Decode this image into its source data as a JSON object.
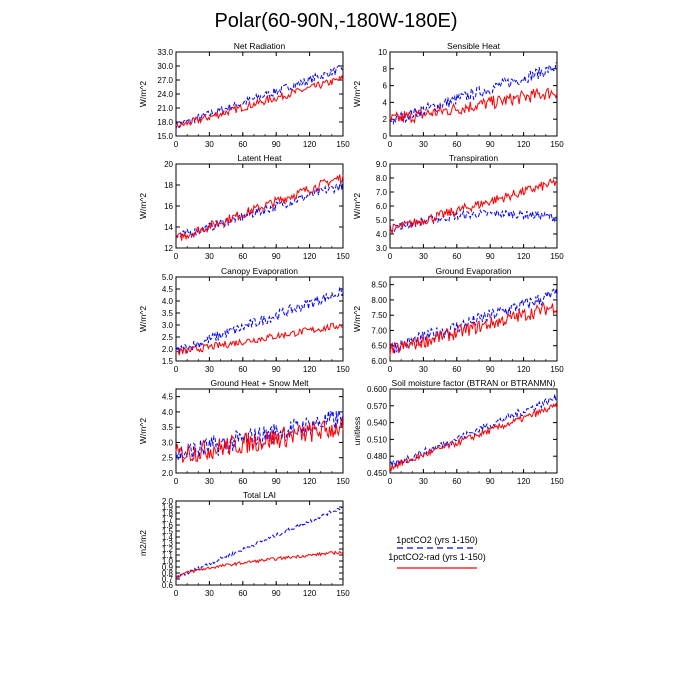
{
  "page_title": "Polar(60-90N,-180W-180E)",
  "legend": {
    "entries": [
      {
        "label": "1pctCO2 (yrs 1-150)",
        "color": "#0000ff",
        "dash": true
      },
      {
        "label": "1pctCO2-rad (yrs 1-150)",
        "color": "#ff0000",
        "dash": false
      }
    ]
  },
  "chart_data": [
    {
      "type": "line",
      "title": "Net Radiation",
      "ylabel": "W/m^2",
      "xlim": [
        0,
        150
      ],
      "xticks": [
        0,
        30,
        60,
        90,
        120,
        150
      ],
      "ylim": [
        15,
        33
      ],
      "yticks": [
        "15.0",
        "18.0",
        "21.0",
        "24.0",
        "27.0",
        "30.0",
        "33.0"
      ],
      "series": [
        {
          "color": "#0000ff",
          "dash": true,
          "start": 17.2,
          "end": 29.5,
          "noise": 0.9
        },
        {
          "color": "#ff0000",
          "dash": false,
          "start": 17.0,
          "end": 27.3,
          "noise": 0.8
        }
      ]
    },
    {
      "type": "line",
      "title": "Sensible Heat",
      "ylabel": "W/m^2",
      "xlim": [
        0,
        150
      ],
      "xticks": [
        0,
        30,
        60,
        90,
        120,
        150
      ],
      "ylim": [
        0,
        10
      ],
      "yticks": [
        "0",
        "2",
        "4",
        "6",
        "8",
        "10"
      ],
      "series": [
        {
          "color": "#0000ff",
          "dash": true,
          "start": 1.8,
          "end": 8.2,
          "noise": 0.7
        },
        {
          "color": "#ff0000",
          "dash": false,
          "start": 1.9,
          "end": 5.3,
          "noise": 0.8
        }
      ]
    },
    {
      "type": "line",
      "title": "Latent Heat",
      "ylabel": "W/m^2",
      "xlim": [
        0,
        150
      ],
      "xticks": [
        0,
        30,
        60,
        90,
        120,
        150
      ],
      "ylim": [
        12,
        20
      ],
      "yticks": [
        "12",
        "14",
        "16",
        "18",
        "20"
      ],
      "series": [
        {
          "color": "#0000ff",
          "dash": true,
          "start": 13.0,
          "end": 18.0,
          "noise": 0.45
        },
        {
          "color": "#ff0000",
          "dash": false,
          "start": 12.9,
          "end": 18.8,
          "noise": 0.45
        }
      ]
    },
    {
      "type": "line",
      "title": "Transpiration",
      "ylabel": "W/m^2",
      "xlim": [
        0,
        150
      ],
      "xticks": [
        0,
        30,
        60,
        90,
        120,
        150
      ],
      "ylim": [
        3,
        9
      ],
      "yticks": [
        "3.0",
        "4.0",
        "5.0",
        "6.0",
        "7.0",
        "8.0",
        "9.0"
      ],
      "series": [
        {
          "color": "#0000ff",
          "dash": true,
          "start": 4.4,
          "end": 5.2,
          "noise": 0.3,
          "peak": 0.6
        },
        {
          "color": "#ff0000",
          "dash": false,
          "start": 4.3,
          "end": 7.7,
          "noise": 0.35
        }
      ]
    },
    {
      "type": "line",
      "title": "Canopy Evaporation",
      "ylabel": "W/m^2",
      "xlim": [
        0,
        150
      ],
      "xticks": [
        0,
        30,
        60,
        90,
        120,
        150
      ],
      "ylim": [
        1.5,
        5.0
      ],
      "yticks": [
        "1.5",
        "2.0",
        "2.5",
        "3.0",
        "3.5",
        "4.0",
        "4.5",
        "5.0"
      ],
      "series": [
        {
          "color": "#0000ff",
          "dash": true,
          "start": 1.9,
          "end": 4.4,
          "noise": 0.22
        },
        {
          "color": "#ff0000",
          "dash": false,
          "start": 1.85,
          "end": 3.0,
          "noise": 0.15
        }
      ]
    },
    {
      "type": "line",
      "title": "Ground Evaporation",
      "ylabel": "W/m^2",
      "xlim": [
        0,
        150
      ],
      "xticks": [
        0,
        30,
        60,
        90,
        120,
        150
      ],
      "ylim": [
        6.0,
        8.75
      ],
      "yticks": [
        "6.00",
        "6.50",
        "7.00",
        "7.50",
        "8.00",
        "8.50"
      ],
      "series": [
        {
          "color": "#0000ff",
          "dash": true,
          "start": 6.4,
          "end": 8.2,
          "noise": 0.22
        },
        {
          "color": "#ff0000",
          "dash": false,
          "start": 6.35,
          "end": 7.8,
          "noise": 0.22
        }
      ]
    },
    {
      "type": "line",
      "title": "Ground Heat + Snow Melt",
      "ylabel": "W/m^2",
      "xlim": [
        0,
        150
      ],
      "xticks": [
        0,
        30,
        60,
        90,
        120,
        150
      ],
      "ylim": [
        2.0,
        4.75
      ],
      "yticks": [
        "2.0",
        "2.5",
        "3.0",
        "3.5",
        "4.0",
        "4.5"
      ],
      "series": [
        {
          "color": "#0000ff",
          "dash": true,
          "start": 2.6,
          "end": 3.8,
          "noise": 0.35
        },
        {
          "color": "#ff0000",
          "dash": false,
          "start": 2.6,
          "end": 3.5,
          "noise": 0.35
        }
      ]
    },
    {
      "type": "line",
      "title": "Soil moisture factor (BTRAN or BTRANMN)",
      "ylabel": "unitless",
      "xlim": [
        0,
        150
      ],
      "xticks": [
        0,
        30,
        60,
        90,
        120,
        150
      ],
      "ylim": [
        0.45,
        0.6
      ],
      "yticks": [
        "0.450",
        "0.480",
        "0.510",
        "0.540",
        "0.570",
        "0.600"
      ],
      "series": [
        {
          "color": "#0000ff",
          "dash": true,
          "start": 0.462,
          "end": 0.585,
          "noise": 0.007
        },
        {
          "color": "#ff0000",
          "dash": false,
          "start": 0.46,
          "end": 0.57,
          "noise": 0.006
        }
      ]
    },
    {
      "type": "line",
      "title": "Total LAI",
      "ylabel": "m2/m2",
      "xlim": [
        0,
        150
      ],
      "xticks": [
        0,
        30,
        60,
        90,
        120,
        150
      ],
      "ylim": [
        0.6,
        2.0
      ],
      "yticks": [
        "0.6",
        "0.7",
        "0.8",
        "0.9",
        "1.0",
        "1.1",
        "1.2",
        "1.3",
        "1.4",
        "1.5",
        "1.6",
        "1.7",
        "1.8",
        "1.9",
        "2.0"
      ],
      "series": [
        {
          "color": "#0000ff",
          "dash": true,
          "start": 0.72,
          "end": 1.9,
          "noise": 0.03
        },
        {
          "color": "#ff0000",
          "dash": false,
          "start": 0.72,
          "end": 1.15,
          "noise": 0.025,
          "curve": 0.6
        }
      ]
    }
  ]
}
